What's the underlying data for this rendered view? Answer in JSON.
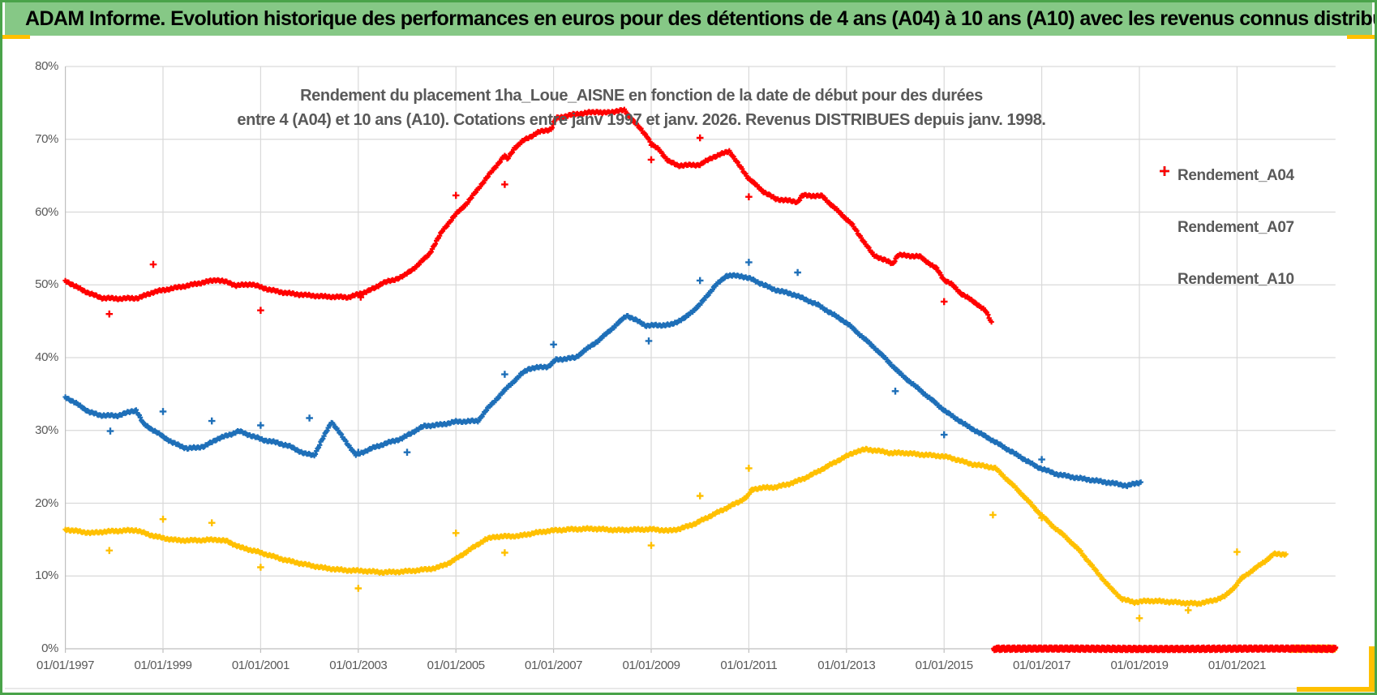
{
  "window": {
    "header_title": "ADAM Informe. Evolution historique des performances en euros pour des détentions de 4 ans (A04) à 10 ans (A10) avec les revenus connus distribués"
  },
  "colors": {
    "header_bg": "#86C886",
    "frame_green": "#4AA34A",
    "accent_gold": "#FFC000",
    "grid": "#D9D9D9",
    "axis": "#BFBFBF",
    "text_gray": "#595959",
    "series_a04": "#FFC000",
    "series_a07": "#1E6FB8",
    "series_a10": "#FF0000"
  },
  "chart_data": {
    "type": "scatter",
    "title_line1": "Rendement du placement 1ha_Loue_AISNE en fonction de la date de début pour des durées",
    "title_line2": "entre 4 (A04) et 10 ans (A10). Cotations entre janv 1997 et janv. 2026. Revenus DISTRIBUES depuis janv. 1998.",
    "x_axis": {
      "tick_labels": [
        "01/01/1997",
        "01/01/1999",
        "01/01/2001",
        "01/01/2003",
        "01/01/2005",
        "01/01/2007",
        "01/01/2009",
        "01/01/2011",
        "01/01/2013",
        "01/01/2015",
        "01/01/2017",
        "01/01/2019",
        "01/01/2021"
      ],
      "tick_years": [
        1997,
        1999,
        2001,
        2003,
        2005,
        2007,
        2009,
        2011,
        2013,
        2015,
        2017,
        2019,
        2021
      ],
      "min_year": 1997.0,
      "max_year": 2023.05,
      "grid": true
    },
    "y_axis": {
      "tick_labels": [
        "0%",
        "10%",
        "20%",
        "30%",
        "40%",
        "50%",
        "60%",
        "70%",
        "80%"
      ],
      "tick_values": [
        0,
        10,
        20,
        30,
        40,
        50,
        60,
        70,
        80
      ],
      "min": 0,
      "max": 80,
      "step": 10,
      "grid": true
    },
    "legend": {
      "position": "right-overlay",
      "items": [
        {
          "label": "Rendement_A04",
          "color": "#FFC000"
        },
        {
          "label": "Rendement_A07",
          "color": "#1E6FB8"
        },
        {
          "label": "Rendement_A10",
          "color": "#FF0000"
        }
      ]
    },
    "series": [
      {
        "name": "Rendement_A04",
        "color": "#FFC000",
        "marker": "plus",
        "anchors": [
          [
            1997.0,
            16.4
          ],
          [
            1997.3,
            16.1
          ],
          [
            1997.55,
            15.9
          ],
          [
            1997.8,
            16.1
          ],
          [
            1998.1,
            16.2
          ],
          [
            1998.45,
            16.3
          ],
          [
            1998.7,
            15.7
          ],
          [
            1999.0,
            15.2
          ],
          [
            1999.3,
            14.9
          ],
          [
            1999.7,
            14.9
          ],
          [
            2000.1,
            15.0
          ],
          [
            2000.3,
            14.8
          ],
          [
            2000.6,
            13.9
          ],
          [
            2000.9,
            13.4
          ],
          [
            2001.2,
            12.8
          ],
          [
            2001.5,
            12.2
          ],
          [
            2001.9,
            11.6
          ],
          [
            2002.3,
            11.1
          ],
          [
            2002.7,
            10.8
          ],
          [
            2003.1,
            10.7
          ],
          [
            2003.5,
            10.5
          ],
          [
            2003.9,
            10.6
          ],
          [
            2004.25,
            10.8
          ],
          [
            2004.6,
            11.1
          ],
          [
            2004.9,
            11.9
          ],
          [
            2005.1,
            12.8
          ],
          [
            2005.35,
            13.9
          ],
          [
            2005.6,
            15.0
          ],
          [
            2005.8,
            15.4
          ],
          [
            2006.3,
            15.5
          ],
          [
            2006.6,
            15.9
          ],
          [
            2006.9,
            16.2
          ],
          [
            2007.3,
            16.4
          ],
          [
            2007.8,
            16.5
          ],
          [
            2008.3,
            16.3
          ],
          [
            2008.8,
            16.4
          ],
          [
            2009.1,
            16.4
          ],
          [
            2009.35,
            16.2
          ],
          [
            2009.6,
            16.5
          ],
          [
            2009.9,
            17.2
          ],
          [
            2010.2,
            18.2
          ],
          [
            2010.5,
            19.2
          ],
          [
            2010.8,
            20.2
          ],
          [
            2010.97,
            20.9
          ],
          [
            2011.07,
            21.9
          ],
          [
            2011.25,
            22.1
          ],
          [
            2011.55,
            22.2
          ],
          [
            2011.8,
            22.6
          ],
          [
            2012.1,
            23.3
          ],
          [
            2012.4,
            24.3
          ],
          [
            2012.7,
            25.4
          ],
          [
            2012.95,
            26.3
          ],
          [
            2013.2,
            27.1
          ],
          [
            2013.4,
            27.4
          ],
          [
            2013.65,
            27.2
          ],
          [
            2013.9,
            26.9
          ],
          [
            2014.2,
            26.9
          ],
          [
            2014.5,
            26.7
          ],
          [
            2014.9,
            26.5
          ],
          [
            2015.1,
            26.3
          ],
          [
            2015.35,
            25.8
          ],
          [
            2015.6,
            25.3
          ],
          [
            2015.85,
            25.1
          ],
          [
            2016.05,
            24.8
          ],
          [
            2016.3,
            23.2
          ],
          [
            2016.6,
            21.2
          ],
          [
            2016.9,
            19.0
          ],
          [
            2017.2,
            17.0
          ],
          [
            2017.5,
            15.3
          ],
          [
            2017.8,
            13.3
          ],
          [
            2018.1,
            10.8
          ],
          [
            2018.4,
            8.4
          ],
          [
            2018.65,
            6.8
          ],
          [
            2018.9,
            6.4
          ],
          [
            2019.2,
            6.6
          ],
          [
            2019.5,
            6.5
          ],
          [
            2019.9,
            6.3
          ],
          [
            2020.2,
            6.2
          ],
          [
            2020.5,
            6.6
          ],
          [
            2020.75,
            7.2
          ],
          [
            2020.95,
            8.5
          ],
          [
            2021.1,
            9.7
          ],
          [
            2021.3,
            10.7
          ],
          [
            2021.55,
            11.9
          ],
          [
            2021.75,
            13.0
          ],
          [
            2022.0,
            13.0
          ]
        ],
        "zero_run": [
          2022.1,
          2023.0
        ],
        "outliers": [
          [
            1997.9,
            13.5
          ],
          [
            1999.0,
            17.8
          ],
          [
            2000.0,
            17.3
          ],
          [
            2001.0,
            11.2
          ],
          [
            2003.0,
            8.3
          ],
          [
            2005.0,
            15.9
          ],
          [
            2006.0,
            13.2
          ],
          [
            2009.0,
            14.2
          ],
          [
            2010.0,
            21.0
          ],
          [
            2011.0,
            24.8
          ],
          [
            2016.0,
            18.4
          ],
          [
            2017.0,
            18.0
          ],
          [
            2019.0,
            4.2
          ],
          [
            2020.0,
            5.3
          ],
          [
            2021.0,
            13.3
          ]
        ]
      },
      {
        "name": "Rendement_A07",
        "color": "#1E6FB8",
        "marker": "plus",
        "anchors": [
          [
            1997.0,
            34.6
          ],
          [
            1997.2,
            33.8
          ],
          [
            1997.5,
            32.5
          ],
          [
            1997.7,
            32.1
          ],
          [
            1998.05,
            32.0
          ],
          [
            1998.25,
            32.4
          ],
          [
            1998.45,
            32.8
          ],
          [
            1998.6,
            30.9
          ],
          [
            1998.9,
            29.6
          ],
          [
            1999.2,
            28.3
          ],
          [
            1999.5,
            27.5
          ],
          [
            1999.85,
            27.8
          ],
          [
            2000.1,
            28.8
          ],
          [
            2000.4,
            29.5
          ],
          [
            2000.55,
            29.9
          ],
          [
            2000.8,
            29.3
          ],
          [
            2001.05,
            28.7
          ],
          [
            2001.35,
            28.3
          ],
          [
            2001.6,
            27.8
          ],
          [
            2001.9,
            26.8
          ],
          [
            2002.1,
            26.6
          ],
          [
            2002.45,
            31.2
          ],
          [
            2002.7,
            28.9
          ],
          [
            2002.95,
            26.6
          ],
          [
            2003.3,
            27.6
          ],
          [
            2003.6,
            28.3
          ],
          [
            2003.9,
            28.9
          ],
          [
            2004.15,
            29.9
          ],
          [
            2004.35,
            30.6
          ],
          [
            2004.7,
            30.8
          ],
          [
            2005.0,
            31.2
          ],
          [
            2005.45,
            31.3
          ],
          [
            2005.65,
            33.0
          ],
          [
            2005.9,
            34.8
          ],
          [
            2006.1,
            36.2
          ],
          [
            2006.35,
            37.8
          ],
          [
            2006.5,
            38.5
          ],
          [
            2006.9,
            38.8
          ],
          [
            2007.05,
            39.7
          ],
          [
            2007.45,
            40.0
          ],
          [
            2007.6,
            40.8
          ],
          [
            2007.95,
            42.5
          ],
          [
            2008.2,
            44.0
          ],
          [
            2008.5,
            45.8
          ],
          [
            2008.9,
            44.4
          ],
          [
            2009.4,
            44.5
          ],
          [
            2009.7,
            45.5
          ],
          [
            2010.0,
            47.3
          ],
          [
            2010.3,
            49.8
          ],
          [
            2010.55,
            51.3
          ],
          [
            2010.85,
            51.2
          ],
          [
            2011.05,
            50.8
          ],
          [
            2011.5,
            49.4
          ],
          [
            2011.95,
            48.6
          ],
          [
            2012.4,
            47.3
          ],
          [
            2012.95,
            45.0
          ],
          [
            2013.05,
            44.5
          ],
          [
            2013.6,
            41.2
          ],
          [
            2014.0,
            38.5
          ],
          [
            2014.1,
            37.8
          ],
          [
            2014.55,
            35.3
          ],
          [
            2015.05,
            32.5
          ],
          [
            2015.5,
            30.5
          ],
          [
            2016.0,
            28.6
          ],
          [
            2016.5,
            26.6
          ],
          [
            2016.9,
            25.0
          ],
          [
            2017.3,
            24.0
          ],
          [
            2017.7,
            23.5
          ],
          [
            2018.1,
            23.1
          ],
          [
            2018.5,
            22.7
          ],
          [
            2018.75,
            22.4
          ],
          [
            2019.03,
            22.9
          ]
        ],
        "zero_run": null,
        "outliers": [
          [
            1997.92,
            29.9
          ],
          [
            1999.0,
            32.6
          ],
          [
            2000.0,
            31.3
          ],
          [
            2001.0,
            30.7
          ],
          [
            2002.0,
            31.7
          ],
          [
            2003.0,
            27.0
          ],
          [
            2004.0,
            27.0
          ],
          [
            2006.0,
            37.7
          ],
          [
            2007.0,
            41.8
          ],
          [
            2008.95,
            42.3
          ],
          [
            2010.0,
            50.6
          ],
          [
            2011.0,
            53.1
          ],
          [
            2012.0,
            51.7
          ],
          [
            2014.0,
            35.4
          ],
          [
            2015.0,
            29.4
          ],
          [
            2017.0,
            26.0
          ]
        ]
      },
      {
        "name": "Rendement_A10",
        "color": "#FF0000",
        "marker": "plus",
        "anchors": [
          [
            1997.0,
            50.6
          ],
          [
            1997.2,
            49.8
          ],
          [
            1997.5,
            48.8
          ],
          [
            1997.75,
            48.2
          ],
          [
            1998.1,
            48.1
          ],
          [
            1998.5,
            48.2
          ],
          [
            1998.8,
            49.0
          ],
          [
            1999.1,
            49.4
          ],
          [
            1999.5,
            49.9
          ],
          [
            1999.8,
            50.3
          ],
          [
            2000.1,
            50.7
          ],
          [
            2000.35,
            50.3
          ],
          [
            2000.5,
            49.9
          ],
          [
            2000.8,
            50.1
          ],
          [
            2001.2,
            49.3
          ],
          [
            2001.5,
            48.9
          ],
          [
            2001.9,
            48.6
          ],
          [
            2002.3,
            48.4
          ],
          [
            2002.8,
            48.3
          ],
          [
            2003.1,
            48.9
          ],
          [
            2003.35,
            49.6
          ],
          [
            2003.5,
            50.3
          ],
          [
            2003.7,
            50.6
          ],
          [
            2003.95,
            51.3
          ],
          [
            2004.2,
            52.6
          ],
          [
            2004.45,
            54.2
          ],
          [
            2004.73,
            57.5
          ],
          [
            2005.0,
            59.7
          ],
          [
            2005.25,
            61.4
          ],
          [
            2005.5,
            63.6
          ],
          [
            2005.75,
            65.7
          ],
          [
            2006.0,
            67.8
          ],
          [
            2006.05,
            67.2
          ],
          [
            2006.2,
            68.8
          ],
          [
            2006.4,
            69.9
          ],
          [
            2006.7,
            71.0
          ],
          [
            2006.95,
            71.4
          ],
          [
            2007.05,
            72.9
          ],
          [
            2007.4,
            73.4
          ],
          [
            2007.9,
            73.8
          ],
          [
            2008.0,
            73.6
          ],
          [
            2008.45,
            74.0
          ],
          [
            2008.7,
            72.0
          ],
          [
            2008.93,
            70.3
          ],
          [
            2009.0,
            69.3
          ],
          [
            2009.16,
            68.6
          ],
          [
            2009.35,
            67.0
          ],
          [
            2009.55,
            66.4
          ],
          [
            2010.0,
            66.5
          ],
          [
            2010.25,
            67.5
          ],
          [
            2010.45,
            68.0
          ],
          [
            2010.6,
            68.4
          ],
          [
            2010.75,
            66.9
          ],
          [
            2011.0,
            64.6
          ],
          [
            2011.3,
            62.8
          ],
          [
            2011.55,
            61.8
          ],
          [
            2012.0,
            61.4
          ],
          [
            2012.1,
            62.3
          ],
          [
            2012.5,
            62.2
          ],
          [
            2012.8,
            60.3
          ],
          [
            2013.1,
            58.4
          ],
          [
            2013.55,
            54.1
          ],
          [
            2013.95,
            52.9
          ],
          [
            2014.05,
            54.1
          ],
          [
            2014.5,
            53.9
          ],
          [
            2014.85,
            52.2
          ],
          [
            2015.0,
            50.7
          ],
          [
            2015.15,
            50.1
          ],
          [
            2015.35,
            48.8
          ],
          [
            2015.65,
            47.5
          ],
          [
            2015.85,
            46.4
          ],
          [
            2015.97,
            44.9
          ]
        ],
        "zero_run": [
          2016.02,
          2023.02
        ],
        "outliers": [
          [
            1997.9,
            46.0
          ],
          [
            1998.8,
            52.8
          ],
          [
            2001.0,
            46.5
          ],
          [
            2003.05,
            48.3
          ],
          [
            2005.0,
            62.3
          ],
          [
            2006.0,
            63.8
          ],
          [
            2009.0,
            67.2
          ],
          [
            2010.0,
            70.2
          ],
          [
            2011.0,
            62.1
          ],
          [
            2015.0,
            47.7
          ]
        ]
      }
    ]
  }
}
